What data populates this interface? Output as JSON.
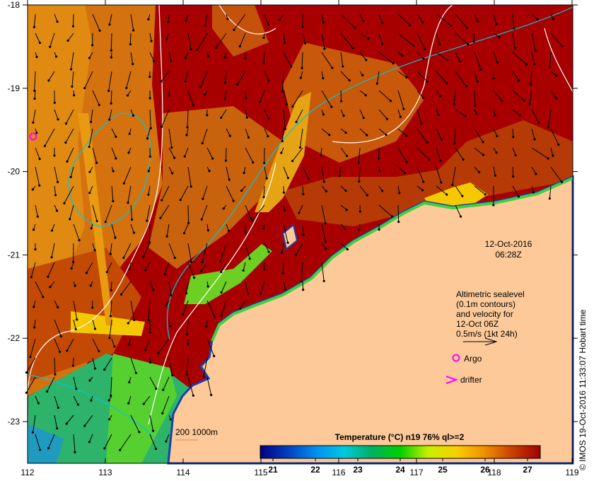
{
  "map": {
    "lon_ticks": [
      "112",
      "113",
      "114",
      "115",
      "116",
      "117",
      "118",
      "119"
    ],
    "lat_ticks": [
      "-18",
      "-19",
      "-20",
      "-21",
      "-22",
      "-23"
    ],
    "lon_range": [
      112,
      119
    ],
    "lat_range": [
      -18,
      -23.5
    ],
    "date": "12-Oct-2016",
    "time": "06:28Z",
    "legend_lines": [
      "Altimetric sealevel",
      "(0.1m contours)",
      "and velocity for",
      "12-Oct 06Z",
      "0.5m/s (1kt 24h)"
    ],
    "argo_label": "Argo",
    "drifter_label": "drifter",
    "scale_label": "200  1000m",
    "credit": "© IMOS 19-Oct-2016 11:33:07 Hobart time",
    "colorbar_title": "Temperature (°C) n19 76% ql>=2",
    "colorbar_ticks": [
      "21",
      "22",
      "23",
      "24",
      "25",
      "26",
      "27"
    ],
    "colorbar_range": [
      20.7,
      27.3
    ],
    "colors": {
      "land": "#fdc998",
      "warm": "#a80000",
      "mid": "#d86a00",
      "argo": "#ff00ff",
      "contour": "#00c8d8"
    }
  }
}
